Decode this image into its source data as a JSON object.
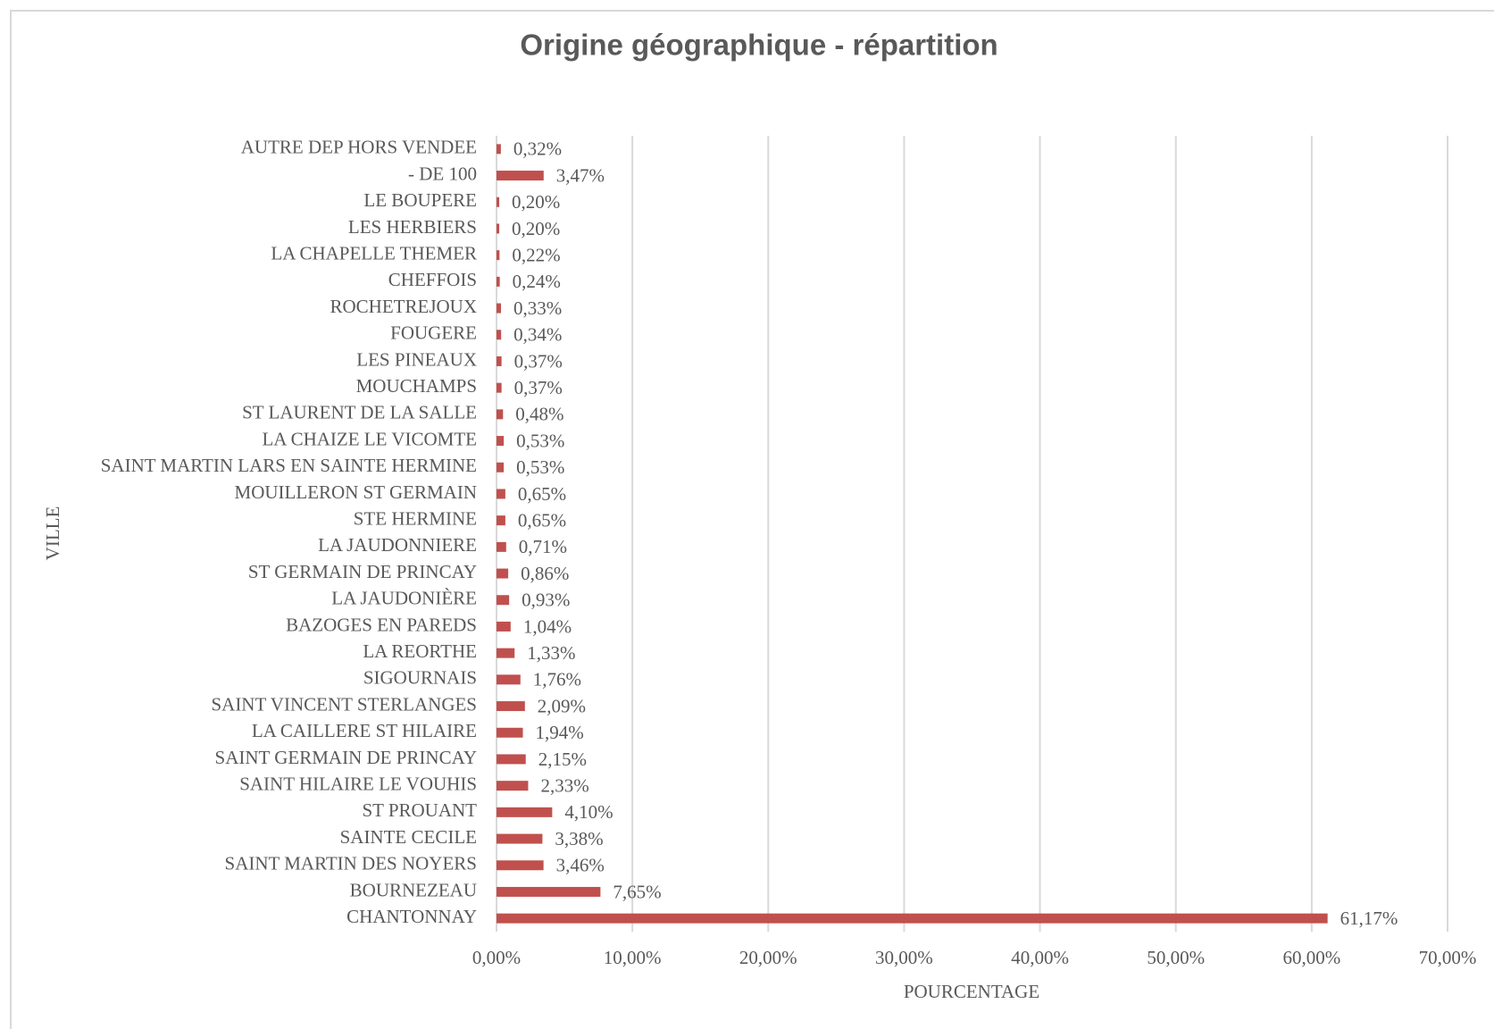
{
  "chart_data": {
    "type": "barh",
    "title": "Origine géographique - répartition",
    "x_label": "POURCENTAGE",
    "y_label": "VILLE",
    "categories": [
      "AUTRE DEP HORS VENDEE",
      "- DE 100",
      "LE BOUPERE",
      "LES HERBIERS",
      "LA CHAPELLE THEMER",
      "CHEFFOIS",
      "ROCHETREJOUX",
      "FOUGERE",
      "LES PINEAUX",
      "MOUCHAMPS",
      "ST LAURENT DE LA SALLE",
      "LA CHAIZE LE VICOMTE",
      "SAINT MARTIN LARS EN SAINTE HERMINE",
      "MOUILLERON ST GERMAIN",
      "STE HERMINE",
      "LA JAUDONNIERE",
      "ST GERMAIN DE PRINCAY",
      "LA JAUDONIÈRE",
      "BAZOGES EN PAREDS",
      "LA REORTHE",
      "SIGOURNAIS",
      "SAINT VINCENT STERLANGES",
      "LA CAILLERE ST HILAIRE",
      "SAINT GERMAIN DE PRINCAY",
      "SAINT HILAIRE LE VOUHIS",
      "ST PROUANT",
      "SAINTE CECILE",
      "SAINT MARTIN DES NOYERS",
      "BOURNEZEAU",
      "CHANTONNAY"
    ],
    "values": [
      0.32,
      3.47,
      0.2,
      0.2,
      0.22,
      0.24,
      0.33,
      0.34,
      0.37,
      0.37,
      0.48,
      0.53,
      0.53,
      0.65,
      0.65,
      0.71,
      0.86,
      0.93,
      1.04,
      1.33,
      1.76,
      2.09,
      1.94,
      2.15,
      2.33,
      4.1,
      3.38,
      3.46,
      7.65,
      61.17
    ],
    "value_labels": [
      "0,32%",
      "3,47%",
      "0,20%",
      "0,20%",
      "0,22%",
      "0,24%",
      "0,33%",
      "0,34%",
      "0,37%",
      "0,37%",
      "0,48%",
      "0,53%",
      "0,53%",
      "0,65%",
      "0,65%",
      "0,71%",
      "0,86%",
      "0,93%",
      "1,04%",
      "1,33%",
      "1,76%",
      "2,09%",
      "1,94%",
      "2,15%",
      "2,33%",
      "4,10%",
      "3,38%",
      "3,46%",
      "7,65%",
      "61,17%"
    ],
    "color": "#c0504d",
    "xlim": [
      0,
      70
    ],
    "xticks": [
      {
        "value": 0,
        "label": "0,00%"
      },
      {
        "value": 10,
        "label": "10,00%"
      },
      {
        "value": 20,
        "label": "20,00%"
      },
      {
        "value": 30,
        "label": "30,00%"
      },
      {
        "value": 40,
        "label": "40,00%"
      },
      {
        "value": 50,
        "label": "50,00%"
      },
      {
        "value": 60,
        "label": "60,00%"
      },
      {
        "value": 70,
        "label": "70,00%"
      }
    ],
    "grid": true
  }
}
